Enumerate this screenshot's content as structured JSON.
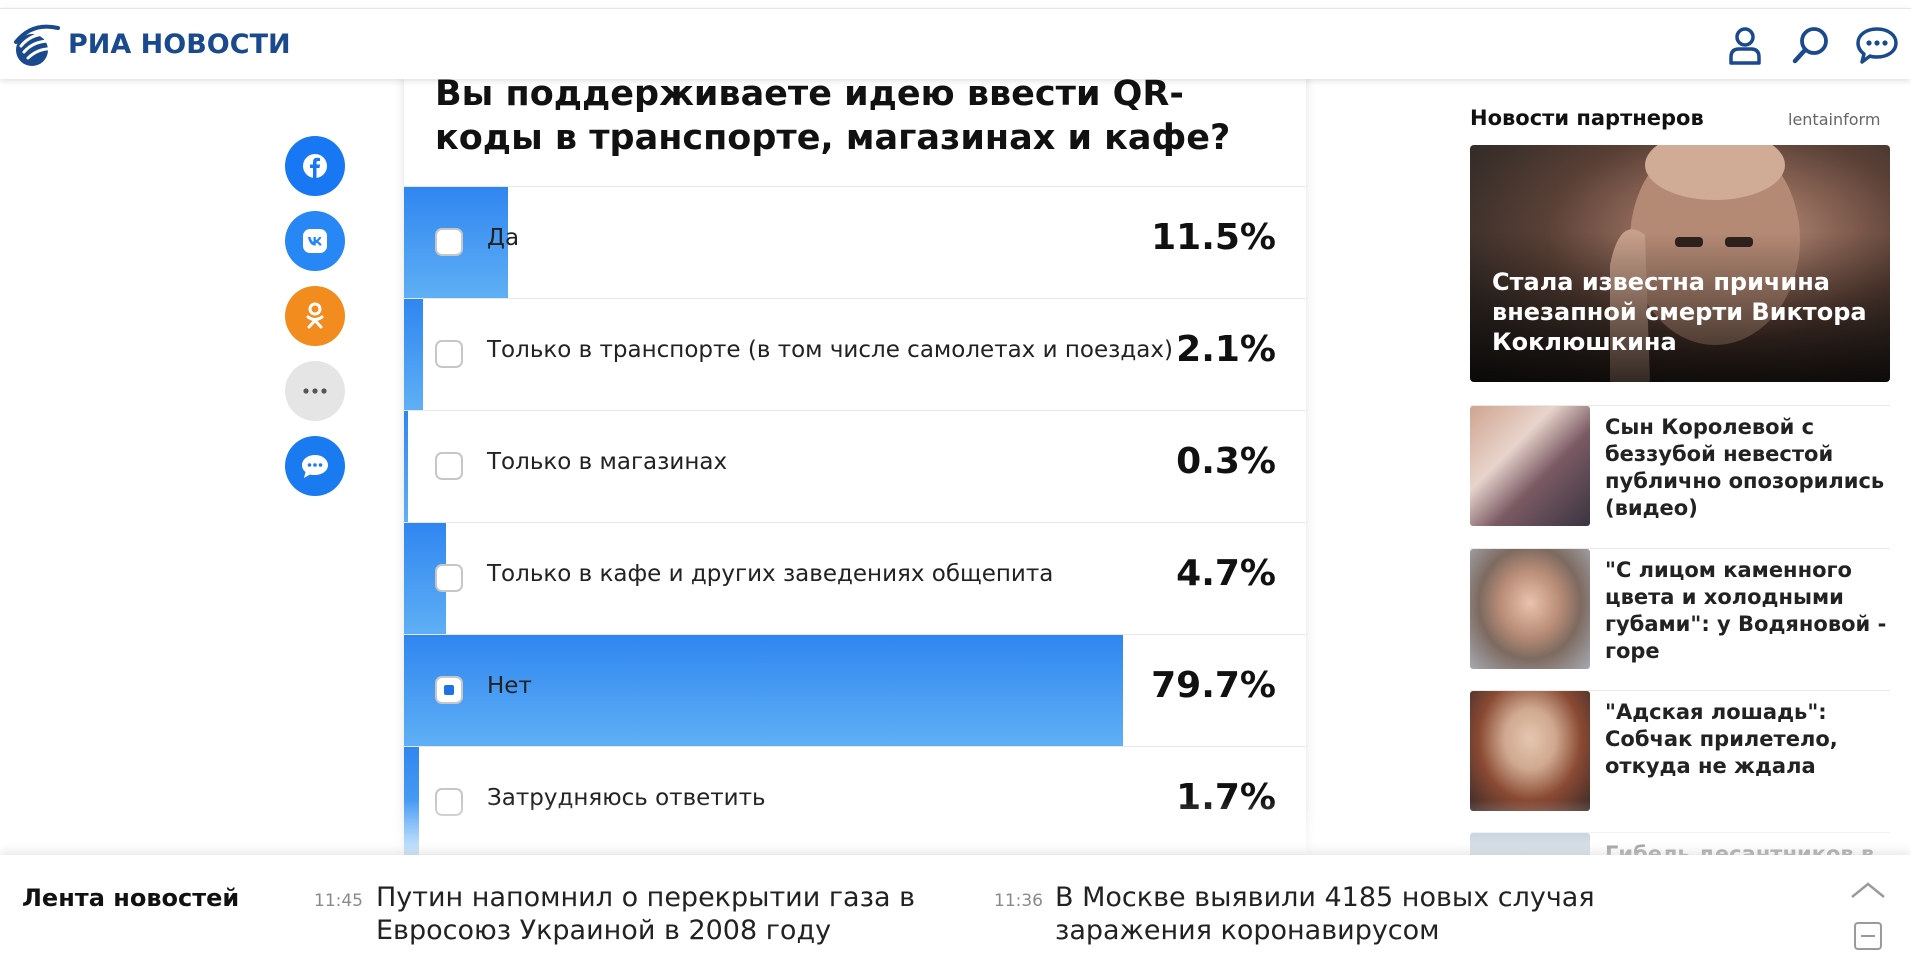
{
  "header": {
    "logo_text": "РИА НОВОСТИ",
    "icons": [
      "user-icon",
      "search-icon",
      "chat-icon"
    ],
    "brand_color": "#1a4a8d"
  },
  "share": {
    "buttons": [
      {
        "name": "facebook-icon",
        "color": "#1877f2"
      },
      {
        "name": "vk-icon",
        "color": "#2787f5"
      },
      {
        "name": "odnoklassniki-icon",
        "color": "#f28c1e"
      },
      {
        "name": "more-icon",
        "color": "#e5e5e5"
      },
      {
        "name": "comments-icon",
        "color": "#1a7bf0"
      }
    ]
  },
  "poll": {
    "title": "Вы поддерживаете идею ввести QR-коды в транспорте, магазинах и кафе?",
    "options": [
      {
        "label": "Да",
        "percent": "11.5%",
        "value": 11.5,
        "checked": false
      },
      {
        "label": "Только в транспорте (в том числе самолетах и поездах)",
        "percent": "2.1%",
        "value": 2.1,
        "checked": false
      },
      {
        "label": "Только в магазинах",
        "percent": "0.3%",
        "value": 0.3,
        "checked": false
      },
      {
        "label": "Только в кафе и других заведениях общепита",
        "percent": "4.7%",
        "value": 4.7,
        "checked": false
      },
      {
        "label": "Нет",
        "percent": "79.7%",
        "value": 79.7,
        "checked": true
      },
      {
        "label": "Затрудняюсь ответить",
        "percent": "1.7%",
        "value": 1.7,
        "checked": false
      }
    ],
    "fill_color": "#2f86f0"
  },
  "sidebar": {
    "title": "Новости партнеров",
    "source": "lentainform",
    "hero": {
      "text": "Стала известна причина внезапной смерти Виктора Коклюшкина"
    },
    "items": [
      {
        "text": "Сын Королевой с беззубой невестой публично опозорились (видео)"
      },
      {
        "text": "\"С лицом каменного цвета и холодными губами\": у Водяновой - горе"
      },
      {
        "text": "\"Адская лошадь\": Собчак прилетело, откуда не ждала"
      },
      {
        "text": "Гибель десантников в"
      }
    ]
  },
  "feed": {
    "title": "Лента новостей",
    "items": [
      {
        "time": "11:45",
        "text": "Путин напомнил о перекрытии газа в Евросоюз Украиной в 2008 году"
      },
      {
        "time": "11:36",
        "text": "В Москве выявили 4185 новых случая заражения коронавирусом"
      }
    ],
    "controls": [
      "chevron-up-icon",
      "minimize-icon"
    ]
  }
}
